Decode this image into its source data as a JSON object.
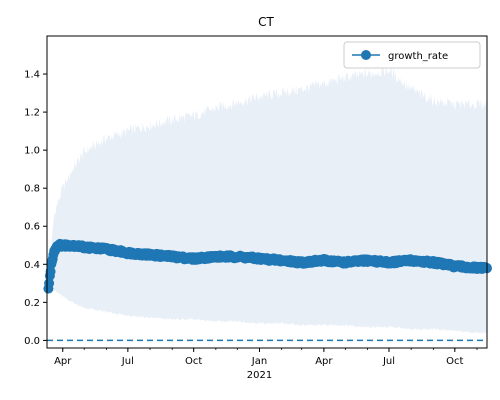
{
  "chart_data": {
    "type": "line",
    "title": "CT",
    "xlabel": "",
    "ylabel": "",
    "x_range": [
      "2020-03-10",
      "2021-11-15"
    ],
    "ylim": [
      -0.04,
      1.6
    ],
    "grid": false,
    "legend": {
      "position": "top-right",
      "entries": [
        "growth_rate"
      ]
    },
    "x_ticks": [
      {
        "date": "2020-04-01",
        "label": "Apr"
      },
      {
        "date": "2020-07-01",
        "label": "Jul"
      },
      {
        "date": "2020-10-01",
        "label": "Oct"
      },
      {
        "date": "2021-01-01",
        "label": "Jan"
      },
      {
        "date": "2021-04-01",
        "label": "Apr"
      },
      {
        "date": "2021-07-01",
        "label": "Jul"
      },
      {
        "date": "2021-10-01",
        "label": "Oct"
      }
    ],
    "x_secondary_label": {
      "date": "2021-01-01",
      "label": "2021"
    },
    "y_ticks": [
      0.0,
      0.2,
      0.4,
      0.6,
      0.8,
      1.0,
      1.2,
      1.4
    ],
    "y_tick_labels": [
      "0.0",
      "0.2",
      "0.4",
      "0.6",
      "0.8",
      "1.0",
      "1.2",
      "1.4"
    ],
    "series": [
      {
        "name": "growth_rate",
        "color": "#1f77b4",
        "x": [
          "2020-03-12",
          "2020-03-16",
          "2020-03-20",
          "2020-03-25",
          "2020-04-01",
          "2020-04-15",
          "2020-05-01",
          "2020-06-01",
          "2020-07-01",
          "2020-08-01",
          "2020-09-01",
          "2020-10-01",
          "2020-11-01",
          "2020-12-01",
          "2021-01-01",
          "2021-02-01",
          "2021-03-01",
          "2021-04-01",
          "2021-05-01",
          "2021-06-01",
          "2021-07-01",
          "2021-08-01",
          "2021-09-01",
          "2021-10-01",
          "2021-11-01",
          "2021-11-15"
        ],
        "values": [
          0.27,
          0.4,
          0.47,
          0.5,
          0.5,
          0.5,
          0.49,
          0.48,
          0.46,
          0.45,
          0.44,
          0.43,
          0.44,
          0.44,
          0.43,
          0.42,
          0.41,
          0.42,
          0.41,
          0.42,
          0.41,
          0.42,
          0.41,
          0.39,
          0.38,
          0.38
        ],
        "band_lower": [
          0.26,
          0.27,
          0.26,
          0.25,
          0.23,
          0.2,
          0.17,
          0.15,
          0.13,
          0.12,
          0.11,
          0.11,
          0.1,
          0.1,
          0.09,
          0.09,
          0.08,
          0.08,
          0.08,
          0.07,
          0.07,
          0.06,
          0.06,
          0.05,
          0.04,
          0.04
        ],
        "band_upper": [
          0.28,
          0.48,
          0.66,
          0.72,
          0.8,
          0.9,
          0.99,
          1.06,
          1.1,
          1.13,
          1.16,
          1.18,
          1.22,
          1.25,
          1.28,
          1.3,
          1.32,
          1.35,
          1.38,
          1.4,
          1.42,
          1.32,
          1.26,
          1.24,
          1.24,
          1.24
        ]
      }
    ],
    "reference_line": {
      "y": 0.0,
      "style": "dashed",
      "color": "#1f77b4"
    },
    "band_color": "#e8eff7"
  }
}
